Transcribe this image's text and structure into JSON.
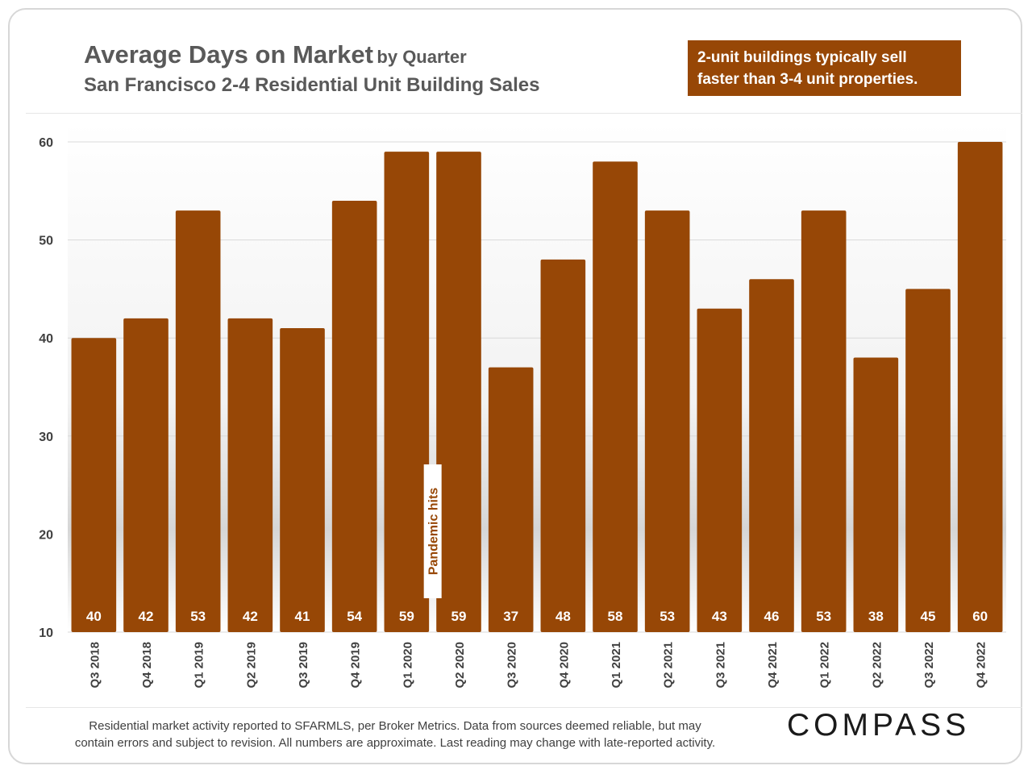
{
  "title": {
    "main": "Average Days on Market",
    "suffix": "by Quarter",
    "subtitle": "San Francisco 2-4 Residential Unit Building Sales"
  },
  "callout": {
    "line1": "2-unit buildings typically sell",
    "line2": "faster than 3-4 unit properties."
  },
  "annotation": {
    "text": "Pandemic hits",
    "category": "Q1 2020"
  },
  "footer": {
    "line1": "Residential market activity reported to SFARMLS, per Broker Metrics. Data from sources deemed reliable, but may",
    "line2": "contain errors and subject to revision. All numbers are approximate. Last reading may change with late-reported activity."
  },
  "logo": {
    "text": "COMPASS"
  },
  "colors": {
    "bar": "#974706",
    "title": "#595959",
    "grid": "#d9d9d9",
    "label": "#ffffff"
  },
  "chart_data": {
    "type": "bar",
    "title": "Average Days on Market by Quarter",
    "subtitle": "San Francisco 2-4 Residential Unit Building Sales",
    "xlabel": "",
    "ylabel": "",
    "ylim": [
      10,
      60
    ],
    "yticks": [
      10,
      20,
      30,
      40,
      50,
      60
    ],
    "grid": true,
    "categories": [
      "Q3 2018",
      "Q4 2018",
      "Q1 2019",
      "Q2 2019",
      "Q3 2019",
      "Q4 2019",
      "Q1 2020",
      "Q2 2020",
      "Q3 2020",
      "Q4 2020",
      "Q1 2021",
      "Q2 2021",
      "Q3 2021",
      "Q4 2021",
      "Q1 2022",
      "Q2 2022",
      "Q3 2022",
      "Q4 2022"
    ],
    "values": [
      40,
      42,
      53,
      42,
      41,
      54,
      59,
      59,
      37,
      48,
      58,
      53,
      43,
      46,
      53,
      38,
      45,
      60
    ],
    "data_labels": [
      "40",
      "42",
      "53",
      "42",
      "41",
      "54",
      "59",
      "59",
      "37",
      "48",
      "58",
      "53",
      "43",
      "46",
      "53",
      "38",
      "45",
      "60"
    ]
  }
}
